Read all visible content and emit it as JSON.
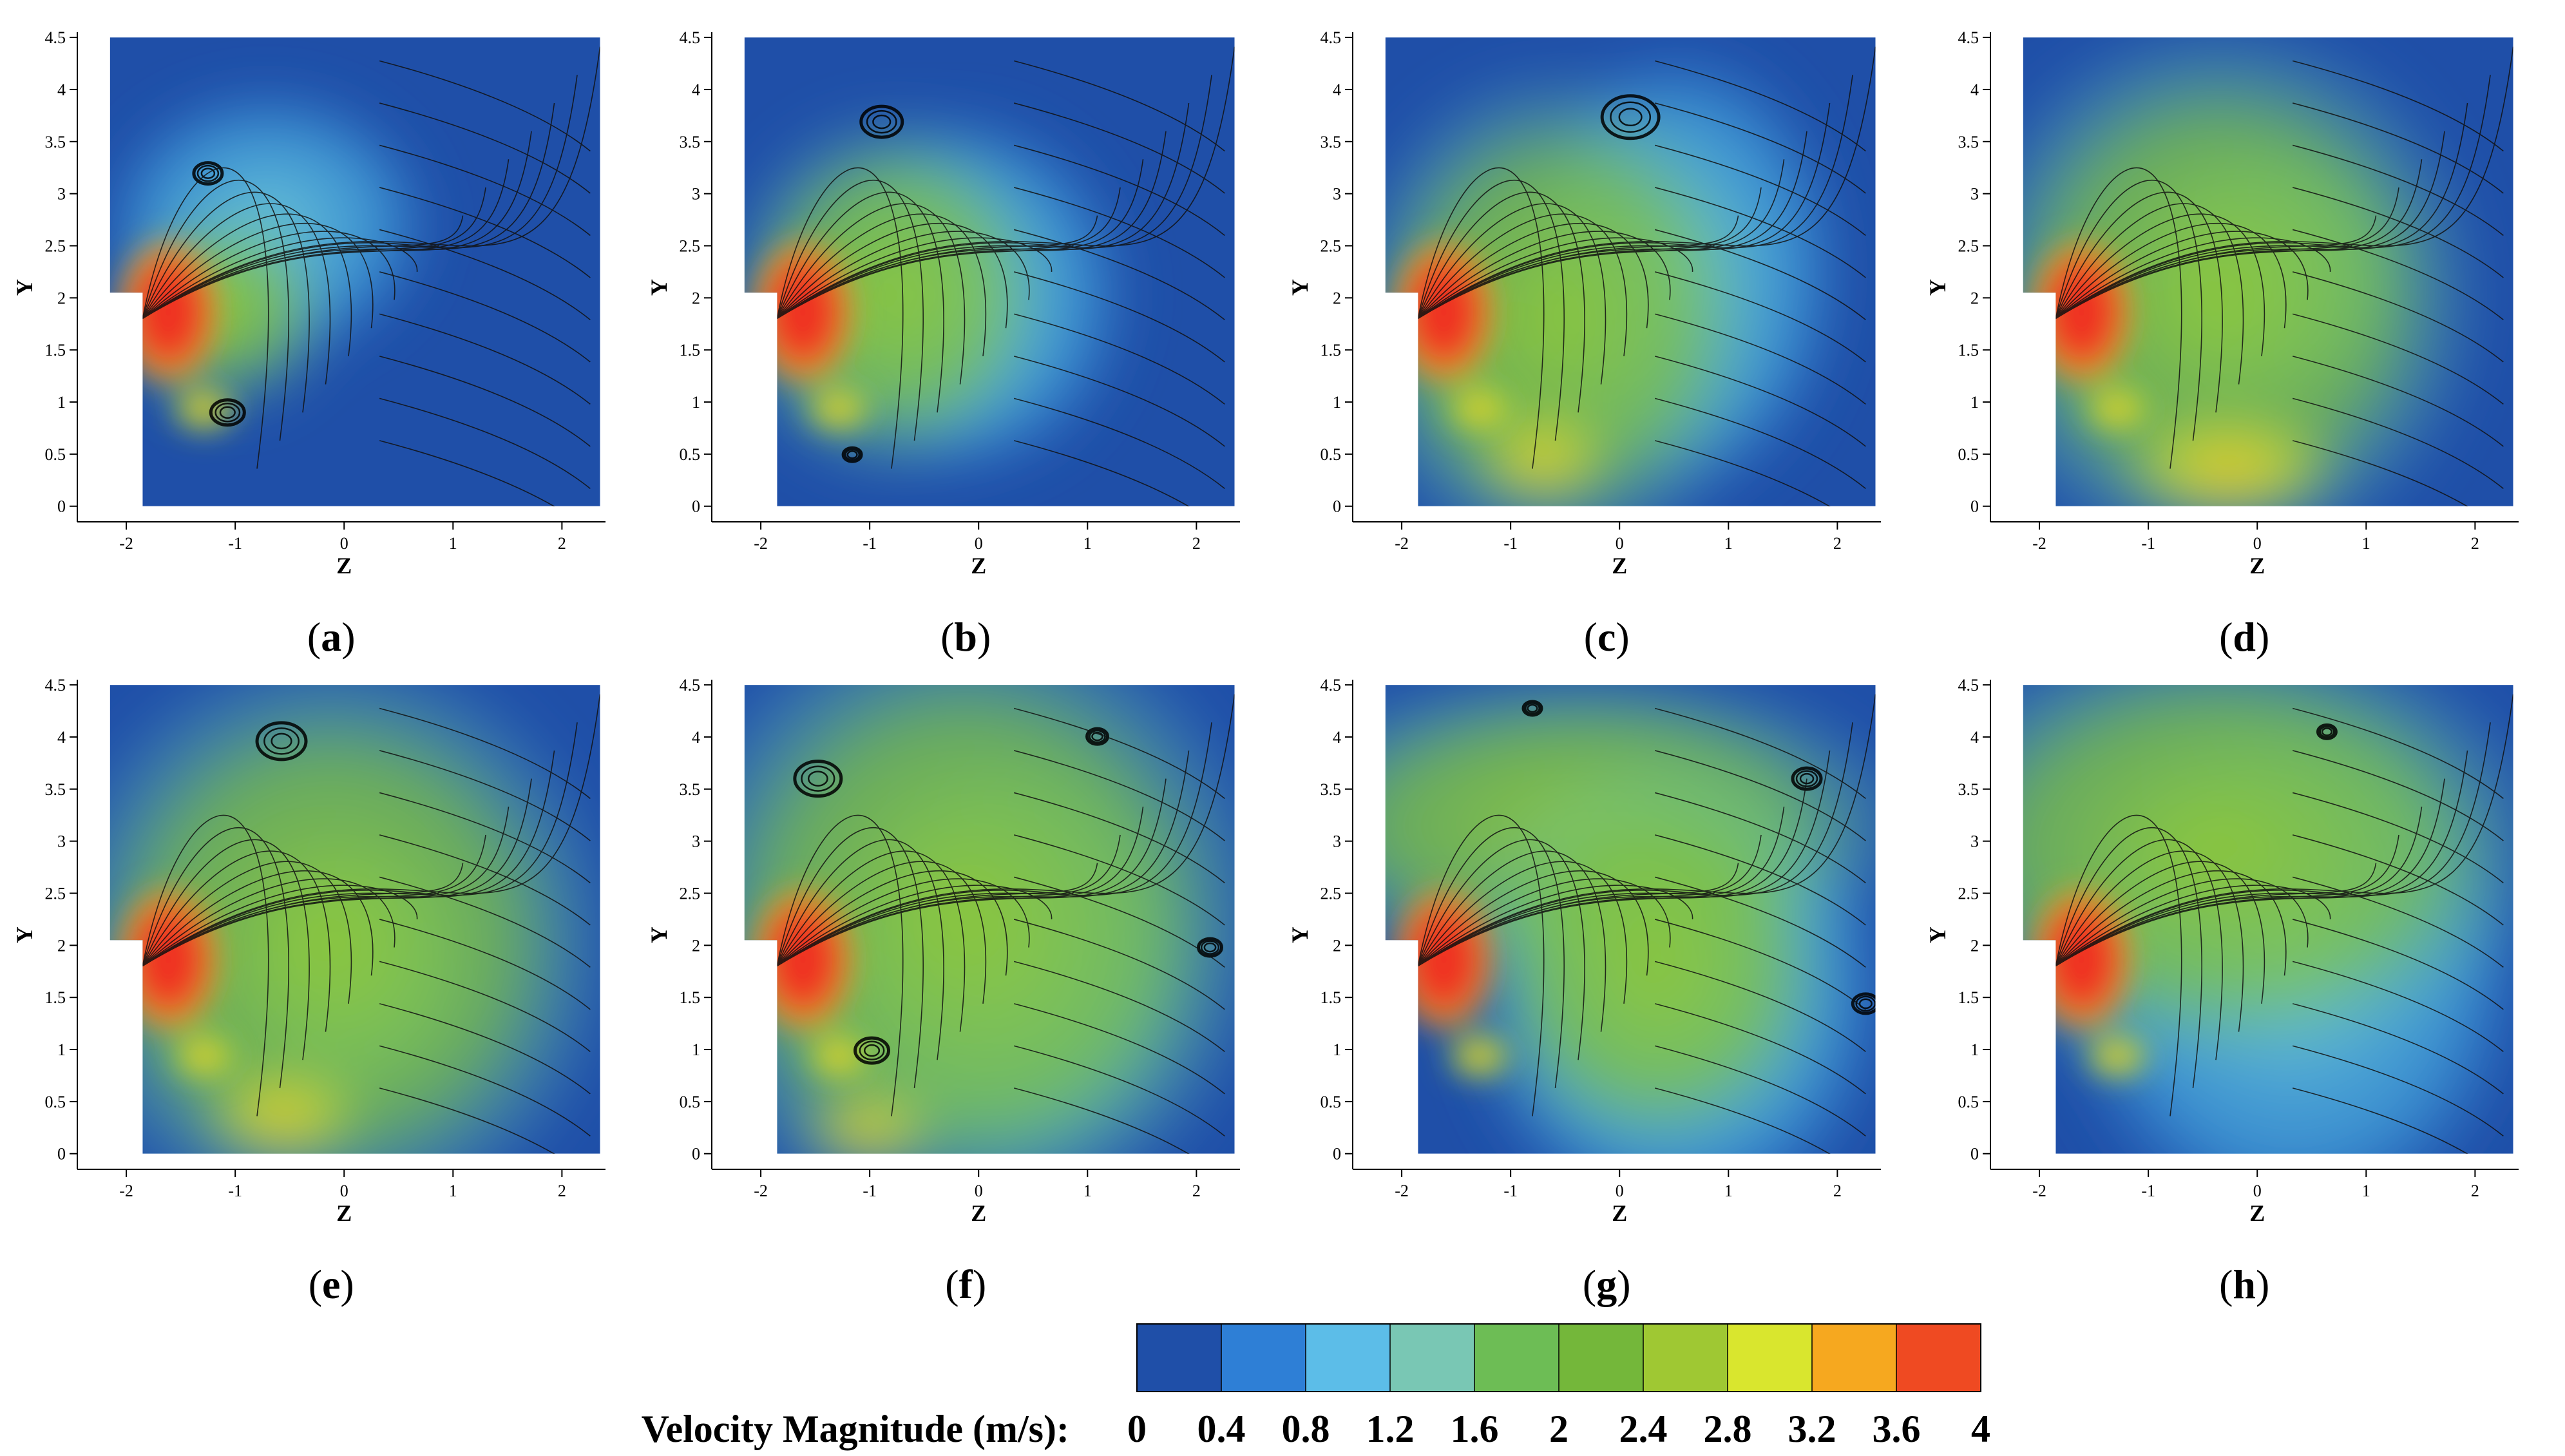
{
  "chart_data": {
    "type": "heatmap",
    "description_type": "streamline-velocity-contour",
    "panels": [
      {
        "label": "a",
        "xlabel": "Z",
        "ylabel": "Y",
        "xticks": [
          "-2",
          "-1",
          "0",
          "1",
          "2"
        ],
        "yticks": [
          "0",
          "0.5",
          "1",
          "1.5",
          "2",
          "2.5",
          "3",
          "3.5",
          "4",
          "4.5"
        ],
        "xlim": [
          -2.45,
          2.4
        ],
        "ylim": [
          -0.15,
          4.55
        ],
        "domain_z": [
          -1.85,
          2.35
        ],
        "domain_y": [
          0,
          4.5
        ],
        "step_z": -1.85,
        "step_y": 2.05
      },
      {
        "label": "b",
        "xlabel": "Z",
        "ylabel": "Y",
        "xticks": [
          "-2",
          "-1",
          "0",
          "1",
          "2"
        ],
        "yticks": [
          "0",
          "0.5",
          "1",
          "1.5",
          "2",
          "2.5",
          "3",
          "3.5",
          "4",
          "4.5"
        ],
        "xlim": [
          -2.45,
          2.4
        ],
        "ylim": [
          -0.15,
          4.55
        ],
        "domain_z": [
          -1.85,
          2.35
        ],
        "domain_y": [
          0,
          4.5
        ],
        "step_z": -1.85,
        "step_y": 2.05
      },
      {
        "label": "c",
        "xlabel": "Z",
        "ylabel": "Y",
        "xticks": [
          "-2",
          "-1",
          "0",
          "1",
          "2"
        ],
        "yticks": [
          "0",
          "0.5",
          "1",
          "1.5",
          "2",
          "2.5",
          "3",
          "3.5",
          "4",
          "4.5"
        ],
        "xlim": [
          -2.45,
          2.4
        ],
        "ylim": [
          -0.15,
          4.55
        ],
        "domain_z": [
          -1.85,
          2.35
        ],
        "domain_y": [
          0,
          4.5
        ],
        "step_z": -1.85,
        "step_y": 2.05
      },
      {
        "label": "d",
        "xlabel": "Z",
        "ylabel": "Y",
        "xticks": [
          "-2",
          "-1",
          "0",
          "1",
          "2"
        ],
        "yticks": [
          "0",
          "0.5",
          "1",
          "1.5",
          "2",
          "2.5",
          "3",
          "3.5",
          "4",
          "4.5"
        ],
        "xlim": [
          -2.45,
          2.4
        ],
        "ylim": [
          -0.15,
          4.55
        ],
        "domain_z": [
          -1.85,
          2.35
        ],
        "domain_y": [
          0,
          4.5
        ],
        "step_z": -1.85,
        "step_y": 2.05
      },
      {
        "label": "e",
        "xlabel": "Z",
        "ylabel": "Y",
        "xticks": [
          "-2",
          "-1",
          "0",
          "1",
          "2"
        ],
        "yticks": [
          "0",
          "0.5",
          "1",
          "1.5",
          "2",
          "2.5",
          "3",
          "3.5",
          "4",
          "4.5"
        ],
        "xlim": [
          -2.45,
          2.4
        ],
        "ylim": [
          -0.15,
          4.55
        ],
        "domain_z": [
          -1.85,
          2.35
        ],
        "domain_y": [
          0,
          4.5
        ],
        "step_z": -1.85,
        "step_y": 2.05
      },
      {
        "label": "f",
        "xlabel": "Z",
        "ylabel": "Y",
        "xticks": [
          "-2",
          "-1",
          "0",
          "1",
          "2"
        ],
        "yticks": [
          "0",
          "0.5",
          "1",
          "1.5",
          "2",
          "2.5",
          "3",
          "3.5",
          "4",
          "4.5"
        ],
        "xlim": [
          -2.45,
          2.4
        ],
        "ylim": [
          -0.15,
          4.55
        ],
        "domain_z": [
          -1.85,
          2.35
        ],
        "domain_y": [
          0,
          4.5
        ],
        "step_z": -1.85,
        "step_y": 2.05
      },
      {
        "label": "g",
        "xlabel": "Z",
        "ylabel": "Y",
        "xticks": [
          "-2",
          "-1",
          "0",
          "1",
          "2"
        ],
        "yticks": [
          "0",
          "0.5",
          "1",
          "1.5",
          "2",
          "2.5",
          "3",
          "3.5",
          "4",
          "4.5"
        ],
        "xlim": [
          -2.45,
          2.4
        ],
        "ylim": [
          -0.15,
          4.55
        ],
        "domain_z": [
          -1.85,
          2.35
        ],
        "domain_y": [
          0,
          4.5
        ],
        "step_z": -1.85,
        "step_y": 2.05
      },
      {
        "label": "h",
        "xlabel": "Z",
        "ylabel": "Y",
        "xticks": [
          "-2",
          "-1",
          "0",
          "1",
          "2"
        ],
        "yticks": [
          "0",
          "0.5",
          "1",
          "1.5",
          "2",
          "2.5",
          "3",
          "3.5",
          "4",
          "4.5"
        ],
        "xlim": [
          -2.45,
          2.4
        ],
        "ylim": [
          -0.15,
          4.55
        ],
        "domain_z": [
          -1.85,
          2.35
        ],
        "domain_y": [
          0,
          4.5
        ],
        "step_z": -1.85,
        "step_y": 2.05
      }
    ],
    "colorbar": {
      "title": "Velocity Magnitude (m/s):",
      "ticks": [
        "0",
        "0.4",
        "0.8",
        "1.2",
        "1.6",
        "2",
        "2.4",
        "2.8",
        "3.2",
        "3.6",
        "4"
      ],
      "range": [
        0,
        4
      ],
      "colors": [
        "#1f4fa8",
        "#2e7fd6",
        "#5cbde8",
        "#79c7b4",
        "#6dbd55",
        "#74b73a",
        "#9fc833",
        "#d9e62e",
        "#f6a81f",
        "#ef4a22"
      ]
    }
  }
}
